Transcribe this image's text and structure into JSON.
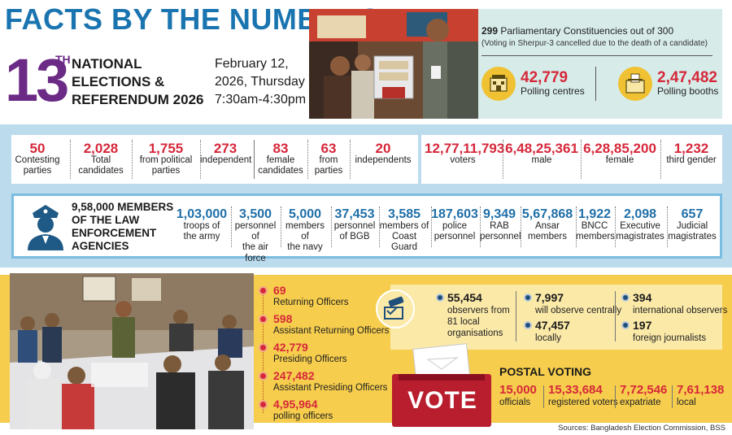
{
  "header": {
    "title": "FACTS BY THE NUMBERS",
    "edition_number": "13",
    "edition_suffix": "TH",
    "event_line1": "NATIONAL",
    "event_line2": "ELECTIONS &",
    "event_line3": "REFERENDUM 2026",
    "date_line1": "February 12,",
    "date_line2": "2026, Thursday",
    "date_line3": "7:30am-4:30pm"
  },
  "constituencies": {
    "count": "299",
    "text": "Parliamentary Constituencies out of 300",
    "note": "(Voting in Sherpur-3 cancelled due to the death of a candidate)"
  },
  "centres": {
    "value": "42,779",
    "label": "Polling centres",
    "icon": "polling-centre-icon",
    "badge": "POLLING CENTRE"
  },
  "booths": {
    "value": "2,47,482",
    "label": "Polling booths",
    "icon": "ballot-box-icon",
    "badge": "VOTE"
  },
  "stats": [
    {
      "value": "50",
      "label1": "Contesting",
      "label2": "parties"
    },
    {
      "value": "2,028",
      "label1": "Total",
      "label2": "candidates"
    },
    {
      "value": "1,755",
      "label1": "from political",
      "label2": "parties"
    },
    {
      "value": "273",
      "label1": "independent",
      "label2": ""
    },
    {
      "value": "83",
      "label1": "female",
      "label2": "candidates"
    },
    {
      "value": "63",
      "label1": "from",
      "label2": "parties"
    },
    {
      "value": "20",
      "label1": "independents",
      "label2": ""
    },
    {
      "value": "12,77,11,793",
      "label1": "voters",
      "label2": ""
    },
    {
      "value": "6,48,25,361",
      "label1": "male",
      "label2": ""
    },
    {
      "value": "6,28,85,200",
      "label1": "female",
      "label2": ""
    },
    {
      "value": "1,232",
      "label1": "third gender",
      "label2": ""
    }
  ],
  "law": {
    "line1": "9,58,000 MEMBERS",
    "line2": "OF THE LAW",
    "line3": "ENFORCEMENT",
    "line4": "AGENCIES",
    "icon": "police-officer-icon",
    "items": [
      {
        "value": "1,03,000",
        "label1": "troops of",
        "label2": "the army"
      },
      {
        "value": "3,500",
        "label1": "personnel of",
        "label2": "the air force"
      },
      {
        "value": "5,000",
        "label1": "members of",
        "label2": "the navy"
      },
      {
        "value": "37,453",
        "label1": "personnel",
        "label2": "of BGB"
      },
      {
        "value": "3,585",
        "label1": "members of",
        "label2": "Coast Guard"
      },
      {
        "value": "187,603",
        "label1": "police",
        "label2": "personnel"
      },
      {
        "value": "9,349",
        "label1": "RAB",
        "label2": "personnel"
      },
      {
        "value": "5,67,868",
        "label1": "Ansar",
        "label2": "members"
      },
      {
        "value": "1,922",
        "label1": "BNCC",
        "label2": "members"
      },
      {
        "value": "2,098",
        "label1": "Executive",
        "label2": "magistrates"
      },
      {
        "value": "657",
        "label1": "Judicial",
        "label2": "magistrates"
      }
    ]
  },
  "officers": [
    {
      "value": "69",
      "label": "Returning Officers"
    },
    {
      "value": "598",
      "label": "Assistant Returning Officers"
    },
    {
      "value": "42,779",
      "label": "Presiding Officers"
    },
    {
      "value": "247,482",
      "label": "Assistant Presiding Officers"
    },
    {
      "value": "4,95,964",
      "label": "polling officers"
    }
  ],
  "observers": {
    "icon": "observation-camera-icon",
    "local": {
      "value": "55,454",
      "label1": "observers from",
      "label2": "81 local",
      "label3": "organisations"
    },
    "central": {
      "value": "7,997",
      "label": "will observe centrally"
    },
    "locally": {
      "value": "47,457",
      "label": "locally"
    },
    "international": {
      "value": "394",
      "label": "international observers"
    },
    "journalists": {
      "value": "197",
      "label": "foreign journalists"
    }
  },
  "postal": {
    "title": "POSTAL VOTING",
    "ballot_box_text": "VOTE",
    "items": [
      {
        "value": "15,000",
        "label": "officials"
      },
      {
        "value": "15,33,684",
        "label": "registered voters"
      },
      {
        "value": "7,72,546",
        "label": "expatriate"
      },
      {
        "value": "7,61,138",
        "label": "local"
      }
    ]
  },
  "sources": "Sources: Bangladesh Election Commission, BSS",
  "colors": {
    "red": "#d6283a",
    "blue": "#1f6fa8",
    "purple": "#6b2a86",
    "teal_panel": "#d7ece9",
    "blue_band": "#bcdcee",
    "yellow": "#f6cd4c",
    "cream": "#fbe9a8"
  }
}
